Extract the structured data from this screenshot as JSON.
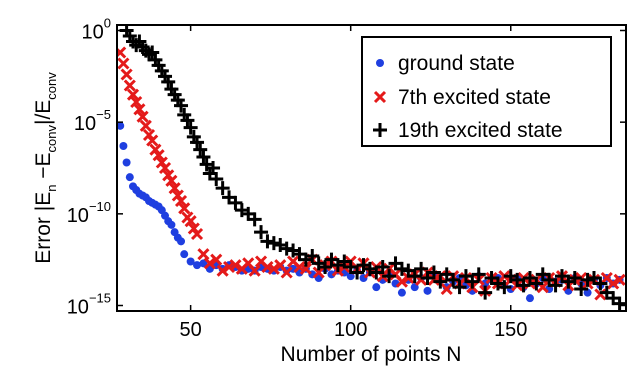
{
  "chart_data": {
    "type": "scatter",
    "xlabel": "Number of points N",
    "ylabel": {
      "main": "Error |E",
      "sub1": "n",
      "mid": " −E",
      "sub2": "conv",
      "mid2": "|/E",
      "sub3": "conv"
    },
    "x_ticks": [
      "50",
      "100",
      "150"
    ],
    "x_tick_values": [
      50,
      100,
      150
    ],
    "y_ticks": [
      {
        "base": "10",
        "exp": "0",
        "value": 0
      },
      {
        "base": "10",
        "exp": "−5",
        "value": -5
      },
      {
        "base": "10",
        "exp": "−10",
        "value": -10
      },
      {
        "base": "10",
        "exp": "−15",
        "value": -15
      }
    ],
    "xlim": [
      27,
      186
    ],
    "ylim_log10": [
      -15.3,
      0.3
    ],
    "yscale": "log",
    "legend_position": "top-right",
    "colors": {
      "ground": "#1f3fe0",
      "excited7": "#e41a1a",
      "excited19": "#000000"
    },
    "series": [
      {
        "name": "ground state",
        "marker": "dot",
        "color": "#1f3fe0",
        "x": [
          28,
          29,
          30,
          31,
          32,
          33,
          34,
          35,
          36,
          37,
          38,
          39,
          40,
          41,
          42,
          43,
          44,
          45,
          46,
          47,
          48,
          50,
          52,
          54,
          56,
          58,
          60,
          62,
          64,
          66,
          68,
          70,
          72,
          74,
          76,
          78,
          80,
          82,
          84,
          86,
          88,
          90,
          92,
          94,
          96,
          98,
          100,
          102,
          104,
          106,
          108,
          110,
          112,
          114,
          116,
          118,
          120,
          122,
          124,
          126,
          128,
          130,
          132,
          134,
          136,
          138,
          140,
          142,
          144,
          146,
          148,
          150,
          152,
          154,
          156,
          158,
          160,
          162,
          164,
          166,
          168,
          170,
          172,
          174,
          176,
          178,
          180,
          182,
          184
        ],
        "y": [
          -5.2,
          -6.3,
          -7.2,
          -8.0,
          -8.5,
          -8.7,
          -8.9,
          -9.0,
          -9.1,
          -9.3,
          -9.4,
          -9.5,
          -9.6,
          -9.8,
          -10.1,
          -10.4,
          -10.6,
          -11.0,
          -11.3,
          -11.5,
          -12.2,
          -12.6,
          -12.8,
          -12.7,
          -13.0,
          -12.8,
          -13.0,
          -12.8,
          -12.9,
          -13.1,
          -13.0,
          -13.1,
          -12.9,
          -13.0,
          -13.1,
          -12.9,
          -13.1,
          -13.0,
          -13.2,
          -13.0,
          -13.3,
          -13.5,
          -13.0,
          -13.3,
          -13.1,
          -13.2,
          -13.4,
          -13.1,
          -13.5,
          -13.2,
          -14.0,
          -13.6,
          -13.3,
          -13.8,
          -14.3,
          -13.6,
          -14.0,
          -13.5,
          -14.2,
          -13.4,
          -13.6,
          -14.0,
          -13.7,
          -13.5,
          -13.9,
          -14.2,
          -13.4,
          -13.8,
          -13.6,
          -13.5,
          -13.9,
          -14.1,
          -13.5,
          -14.0,
          -14.6,
          -13.8,
          -13.5,
          -14.1,
          -13.7,
          -13.6,
          -14.2,
          -13.5,
          -13.8,
          -14.3,
          -13.6,
          -13.9,
          -13.5,
          -13.8,
          -13.6
        ]
      },
      {
        "name": "7th excited state",
        "marker": "x",
        "color": "#e41a1a",
        "x": [
          28,
          29,
          30,
          31,
          32,
          33,
          34,
          35,
          36,
          37,
          38,
          39,
          40,
          41,
          42,
          43,
          44,
          45,
          46,
          47,
          48,
          49,
          50,
          51,
          52,
          54,
          56,
          58,
          60,
          62,
          64,
          66,
          68,
          70,
          72,
          74,
          76,
          78,
          80,
          82,
          84,
          86,
          88,
          90,
          92,
          94,
          96,
          98,
          100,
          102,
          104,
          106,
          108,
          110,
          112,
          114,
          116,
          118,
          120,
          122,
          124,
          126,
          128,
          130,
          132,
          134,
          136,
          138,
          140,
          142,
          144,
          146,
          148,
          150,
          152,
          154,
          156,
          158,
          160,
          162,
          164,
          166,
          168,
          170,
          172,
          174,
          176,
          178,
          180,
          182,
          184
        ],
        "y": [
          -1.2,
          -1.8,
          -2.4,
          -3.0,
          -3.5,
          -3.9,
          -4.3,
          -4.7,
          -5.2,
          -5.7,
          -6.0,
          -6.5,
          -6.8,
          -7.2,
          -7.5,
          -7.9,
          -8.2,
          -8.6,
          -9.0,
          -9.3,
          -9.7,
          -10.2,
          -10.4,
          -10.8,
          -11.1,
          -12.2,
          -12.7,
          -12.5,
          -13.1,
          -12.9,
          -12.8,
          -13.0,
          -12.7,
          -13.1,
          -12.6,
          -12.9,
          -13.0,
          -12.8,
          -13.2,
          -12.6,
          -12.9,
          -13.0,
          -12.5,
          -13.2,
          -12.8,
          -12.6,
          -13.1,
          -12.9,
          -12.6,
          -13.0,
          -12.7,
          -13.2,
          -12.9,
          -13.4,
          -13.0,
          -13.3,
          -13.7,
          -13.5,
          -13.3,
          -13.6,
          -13.2,
          -13.6,
          -13.4,
          -14.1,
          -13.4,
          -13.8,
          -13.5,
          -14.0,
          -13.6,
          -14.2,
          -13.5,
          -13.8,
          -13.4,
          -13.6,
          -13.9,
          -13.5,
          -13.8,
          -13.6,
          -14.0,
          -13.5,
          -13.7,
          -13.4,
          -13.9,
          -13.6,
          -13.5,
          -13.8,
          -13.6,
          -14.4,
          -13.5,
          -13.8,
          -13.6
        ]
      },
      {
        "name": "19th excited state",
        "marker": "plus",
        "color": "#000000",
        "x": [
          30,
          31,
          32,
          33,
          34,
          35,
          36,
          37,
          38,
          39,
          40,
          41,
          42,
          43,
          44,
          45,
          46,
          47,
          48,
          49,
          50,
          51,
          52,
          53,
          54,
          55,
          56,
          57,
          58,
          60,
          62,
          64,
          66,
          68,
          70,
          72,
          74,
          76,
          78,
          80,
          82,
          84,
          86,
          88,
          90,
          92,
          94,
          96,
          98,
          100,
          102,
          104,
          106,
          108,
          110,
          112,
          114,
          116,
          118,
          120,
          122,
          124,
          126,
          128,
          130,
          132,
          134,
          136,
          138,
          140,
          142,
          144,
          146,
          148,
          150,
          152,
          154,
          156,
          158,
          160,
          162,
          164,
          166,
          168,
          170,
          172,
          174,
          176,
          178,
          180,
          182,
          184
        ],
        "y": [
          0.0,
          -0.3,
          -0.6,
          -0.8,
          -0.6,
          -0.9,
          -1.1,
          -1.3,
          -1.2,
          -1.6,
          -1.9,
          -2.2,
          -2.5,
          -2.8,
          -3.2,
          -3.5,
          -3.8,
          -4.1,
          -4.6,
          -4.9,
          -5.3,
          -5.8,
          -6.1,
          -6.5,
          -6.9,
          -7.3,
          -7.8,
          -7.5,
          -8.1,
          -8.6,
          -9.1,
          -9.4,
          -9.8,
          -10.0,
          -10.3,
          -11.0,
          -11.5,
          -11.6,
          -11.7,
          -11.9,
          -12.0,
          -12.2,
          -12.5,
          -12.3,
          -12.7,
          -12.9,
          -12.5,
          -12.8,
          -12.6,
          -12.9,
          -13.2,
          -12.8,
          -13.0,
          -13.2,
          -12.9,
          -13.4,
          -12.7,
          -13.0,
          -13.1,
          -13.4,
          -13.0,
          -13.5,
          -13.2,
          -13.7,
          -13.3,
          -13.6,
          -14.0,
          -13.4,
          -13.7,
          -13.3,
          -14.3,
          -13.5,
          -13.8,
          -14.0,
          -13.4,
          -13.6,
          -13.9,
          -13.5,
          -13.8,
          -13.3,
          -13.6,
          -13.9,
          -13.4,
          -13.7,
          -13.5,
          -14.1,
          -13.6,
          -13.5,
          -13.8,
          -14.3,
          -14.6,
          -14.9
        ]
      }
    ]
  }
}
